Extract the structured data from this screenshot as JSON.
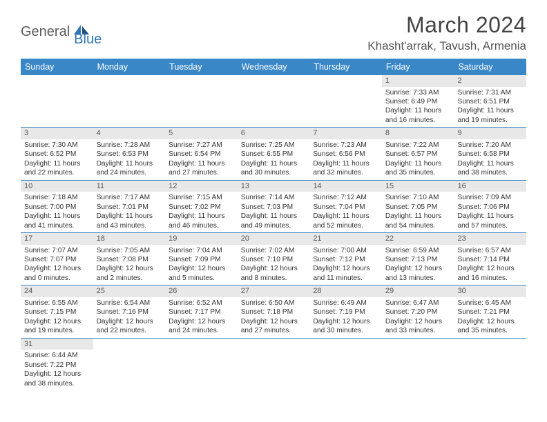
{
  "logo": {
    "text1": "General",
    "text2": "Blue"
  },
  "title": "March 2024",
  "location": "Khasht'arrak, Tavush, Armenia",
  "weekdays": [
    "Sunday",
    "Monday",
    "Tuesday",
    "Wednesday",
    "Thursday",
    "Friday",
    "Saturday"
  ],
  "colors": {
    "header_bar": "#3a87c8",
    "daynum_bg": "#e8e8e8",
    "row_border": "#3a87c8",
    "logo_gray": "#5b5b5b",
    "logo_blue": "#2f73b5"
  },
  "weeks": [
    [
      null,
      null,
      null,
      null,
      null,
      {
        "n": "1",
        "sr": "7:33 AM",
        "ss": "6:49 PM",
        "dl": "11 hours and 16 minutes."
      },
      {
        "n": "2",
        "sr": "7:31 AM",
        "ss": "6:51 PM",
        "dl": "11 hours and 19 minutes."
      }
    ],
    [
      {
        "n": "3",
        "sr": "7:30 AM",
        "ss": "6:52 PM",
        "dl": "11 hours and 22 minutes."
      },
      {
        "n": "4",
        "sr": "7:28 AM",
        "ss": "6:53 PM",
        "dl": "11 hours and 24 minutes."
      },
      {
        "n": "5",
        "sr": "7:27 AM",
        "ss": "6:54 PM",
        "dl": "11 hours and 27 minutes."
      },
      {
        "n": "6",
        "sr": "7:25 AM",
        "ss": "6:55 PM",
        "dl": "11 hours and 30 minutes."
      },
      {
        "n": "7",
        "sr": "7:23 AM",
        "ss": "6:56 PM",
        "dl": "11 hours and 32 minutes."
      },
      {
        "n": "8",
        "sr": "7:22 AM",
        "ss": "6:57 PM",
        "dl": "11 hours and 35 minutes."
      },
      {
        "n": "9",
        "sr": "7:20 AM",
        "ss": "6:58 PM",
        "dl": "11 hours and 38 minutes."
      }
    ],
    [
      {
        "n": "10",
        "sr": "7:18 AM",
        "ss": "7:00 PM",
        "dl": "11 hours and 41 minutes."
      },
      {
        "n": "11",
        "sr": "7:17 AM",
        "ss": "7:01 PM",
        "dl": "11 hours and 43 minutes."
      },
      {
        "n": "12",
        "sr": "7:15 AM",
        "ss": "7:02 PM",
        "dl": "11 hours and 46 minutes."
      },
      {
        "n": "13",
        "sr": "7:14 AM",
        "ss": "7:03 PM",
        "dl": "11 hours and 49 minutes."
      },
      {
        "n": "14",
        "sr": "7:12 AM",
        "ss": "7:04 PM",
        "dl": "11 hours and 52 minutes."
      },
      {
        "n": "15",
        "sr": "7:10 AM",
        "ss": "7:05 PM",
        "dl": "11 hours and 54 minutes."
      },
      {
        "n": "16",
        "sr": "7:09 AM",
        "ss": "7:06 PM",
        "dl": "11 hours and 57 minutes."
      }
    ],
    [
      {
        "n": "17",
        "sr": "7:07 AM",
        "ss": "7:07 PM",
        "dl": "12 hours and 0 minutes."
      },
      {
        "n": "18",
        "sr": "7:05 AM",
        "ss": "7:08 PM",
        "dl": "12 hours and 2 minutes."
      },
      {
        "n": "19",
        "sr": "7:04 AM",
        "ss": "7:09 PM",
        "dl": "12 hours and 5 minutes."
      },
      {
        "n": "20",
        "sr": "7:02 AM",
        "ss": "7:10 PM",
        "dl": "12 hours and 8 minutes."
      },
      {
        "n": "21",
        "sr": "7:00 AM",
        "ss": "7:12 PM",
        "dl": "12 hours and 11 minutes."
      },
      {
        "n": "22",
        "sr": "6:59 AM",
        "ss": "7:13 PM",
        "dl": "12 hours and 13 minutes."
      },
      {
        "n": "23",
        "sr": "6:57 AM",
        "ss": "7:14 PM",
        "dl": "12 hours and 16 minutes."
      }
    ],
    [
      {
        "n": "24",
        "sr": "6:55 AM",
        "ss": "7:15 PM",
        "dl": "12 hours and 19 minutes."
      },
      {
        "n": "25",
        "sr": "6:54 AM",
        "ss": "7:16 PM",
        "dl": "12 hours and 22 minutes."
      },
      {
        "n": "26",
        "sr": "6:52 AM",
        "ss": "7:17 PM",
        "dl": "12 hours and 24 minutes."
      },
      {
        "n": "27",
        "sr": "6:50 AM",
        "ss": "7:18 PM",
        "dl": "12 hours and 27 minutes."
      },
      {
        "n": "28",
        "sr": "6:49 AM",
        "ss": "7:19 PM",
        "dl": "12 hours and 30 minutes."
      },
      {
        "n": "29",
        "sr": "6:47 AM",
        "ss": "7:20 PM",
        "dl": "12 hours and 33 minutes."
      },
      {
        "n": "30",
        "sr": "6:45 AM",
        "ss": "7:21 PM",
        "dl": "12 hours and 35 minutes."
      }
    ],
    [
      {
        "n": "31",
        "sr": "6:44 AM",
        "ss": "7:22 PM",
        "dl": "12 hours and 38 minutes."
      },
      null,
      null,
      null,
      null,
      null,
      null
    ]
  ],
  "labels": {
    "sunrise": "Sunrise: ",
    "sunset": "Sunset: ",
    "daylight": "Daylight: "
  }
}
